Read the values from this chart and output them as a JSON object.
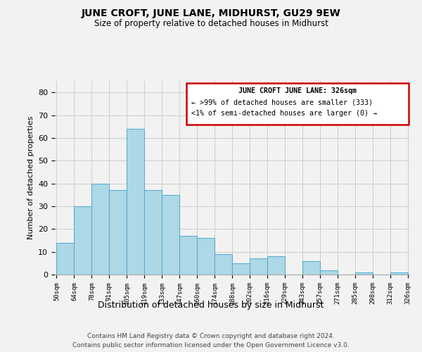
{
  "title": "JUNE CROFT, JUNE LANE, MIDHURST, GU29 9EW",
  "subtitle": "Size of property relative to detached houses in Midhurst",
  "xlabel": "Distribution of detached houses by size in Midhurst",
  "ylabel": "Number of detached properties",
  "bar_values": [
    14,
    30,
    40,
    37,
    64,
    37,
    35,
    17,
    16,
    9,
    5,
    7,
    8,
    0,
    6,
    2,
    0,
    1,
    0,
    1
  ],
  "bar_labels": [
    "50sqm",
    "64sqm",
    "78sqm",
    "91sqm",
    "105sqm",
    "119sqm",
    "133sqm",
    "147sqm",
    "160sqm",
    "174sqm",
    "188sqm",
    "202sqm",
    "216sqm",
    "229sqm",
    "243sqm",
    "257sqm",
    "271sqm",
    "285sqm",
    "298sqm",
    "312sqm",
    "326sqm"
  ],
  "bar_color": "#add8e6",
  "bar_edge_color": "#5badd0",
  "ylim": [
    0,
    85
  ],
  "yticks": [
    0,
    10,
    20,
    30,
    40,
    50,
    60,
    70,
    80
  ],
  "legend_title": "JUNE CROFT JUNE LANE: 326sqm",
  "legend_line1": "← >99% of detached houses are smaller (333)",
  "legend_line2": "<1% of semi-detached houses are larger (0) →",
  "legend_border_color": "#cc0000",
  "footer_line1": "Contains HM Land Registry data © Crown copyright and database right 2024.",
  "footer_line2": "Contains public sector information licensed under the Open Government Licence v3.0.",
  "background_color": "#f2f2f2",
  "grid_color": "#cccccc"
}
